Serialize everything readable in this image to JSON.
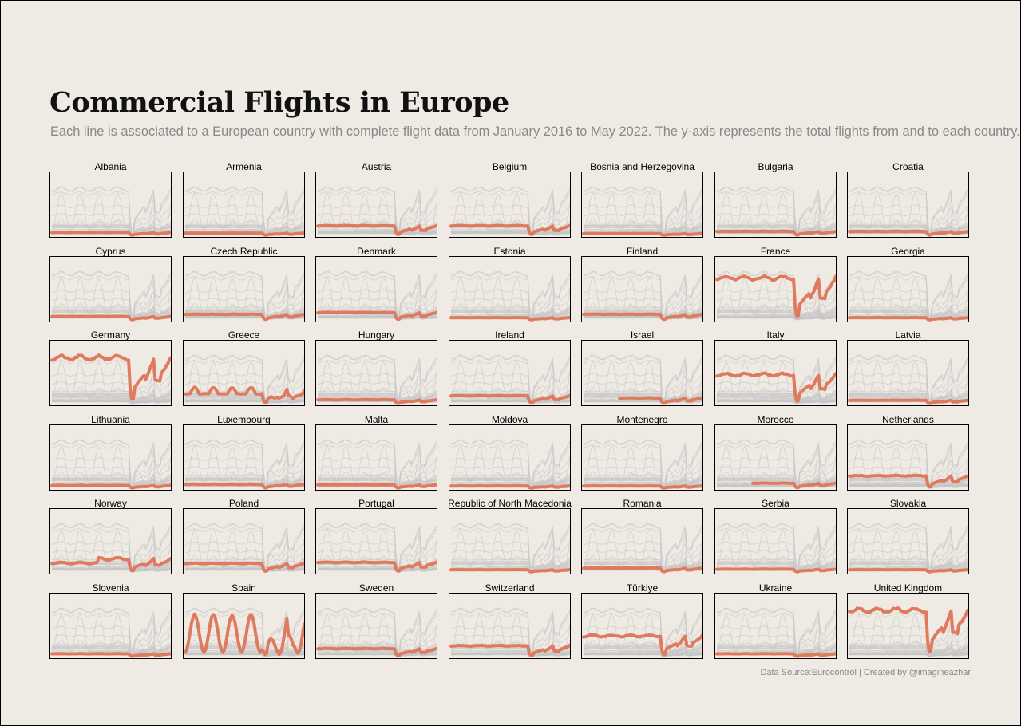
{
  "header": {
    "title": "Commercial Flights in Europe",
    "subtitle": "Each line is associated to a European country with complete flight data from January 2016 to May 2022. The y-axis represents the total flights from and to each country."
  },
  "footer": {
    "source": "Data Source:Eurocontrol | Created by @imagineazhar"
  },
  "colors": {
    "background": "#efebe4",
    "highlight": "#e07a5f",
    "context": "#c6c6c6",
    "frame": "#000000"
  },
  "chart_data": {
    "type": "line",
    "x_range": [
      "2016-01",
      "2022-05"
    ],
    "grid": false,
    "panels": [
      {
        "country": "Albania",
        "level": 0.05,
        "shape": "flat",
        "start": 0
      },
      {
        "country": "Armenia",
        "level": 0.04,
        "shape": "flat",
        "start": 0
      },
      {
        "country": "Austria",
        "level": 0.17,
        "shape": "medium",
        "start": 0
      },
      {
        "country": "Belgium",
        "level": 0.17,
        "shape": "medium",
        "start": 0
      },
      {
        "country": "Bosnia and Herzegovina",
        "level": 0.03,
        "shape": "flat",
        "start": 0
      },
      {
        "country": "Bulgaria",
        "level": 0.07,
        "shape": "flat",
        "start": 0
      },
      {
        "country": "Croatia",
        "level": 0.07,
        "shape": "flat",
        "start": 0
      },
      {
        "country": "Cyprus",
        "level": 0.06,
        "shape": "flat",
        "start": 0
      },
      {
        "country": "Czech Republic",
        "level": 0.1,
        "shape": "medium",
        "start": 0
      },
      {
        "country": "Denmark",
        "level": 0.13,
        "shape": "medium",
        "start": 0
      },
      {
        "country": "Estonia",
        "level": 0.04,
        "shape": "flat",
        "start": 0
      },
      {
        "country": "Finland",
        "level": 0.1,
        "shape": "medium",
        "start": 0
      },
      {
        "country": "France",
        "level": 0.75,
        "shape": "big",
        "start": 0
      },
      {
        "country": "Georgia",
        "level": 0.04,
        "shape": "flat",
        "start": 0
      },
      {
        "country": "Germany",
        "level": 0.82,
        "shape": "big",
        "start": 0
      },
      {
        "country": "Greece",
        "level": 0.28,
        "shape": "seasonal",
        "start": 0
      },
      {
        "country": "Hungary",
        "level": 0.07,
        "shape": "flat",
        "start": 0
      },
      {
        "country": "Ireland",
        "level": 0.14,
        "shape": "medium",
        "start": 0
      },
      {
        "country": "Israel",
        "level": 0.1,
        "shape": "medium",
        "start": 0.3
      },
      {
        "country": "Italy",
        "level": 0.52,
        "shape": "big",
        "start": 0
      },
      {
        "country": "Latvia",
        "level": 0.06,
        "shape": "flat",
        "start": 0
      },
      {
        "country": "Lithuania",
        "level": 0.05,
        "shape": "flat",
        "start": 0
      },
      {
        "country": "Luxembourg",
        "level": 0.07,
        "shape": "flat",
        "start": 0
      },
      {
        "country": "Malta",
        "level": 0.06,
        "shape": "flat",
        "start": 0
      },
      {
        "country": "Moldova",
        "level": 0.04,
        "shape": "flat",
        "start": 0
      },
      {
        "country": "Montenegro",
        "level": 0.04,
        "shape": "flat",
        "start": 0
      },
      {
        "country": "Morocco",
        "level": 0.09,
        "shape": "medium",
        "start": 0.3
      },
      {
        "country": "Netherlands",
        "level": 0.22,
        "shape": "medium",
        "start": 0
      },
      {
        "country": "Norway",
        "level": 0.26,
        "shape": "norway",
        "start": 0
      },
      {
        "country": "Poland",
        "level": 0.15,
        "shape": "medium",
        "start": 0
      },
      {
        "country": "Portugal",
        "level": 0.17,
        "shape": "medium",
        "start": 0
      },
      {
        "country": "Republic of North Macedonia",
        "level": 0.04,
        "shape": "flat",
        "start": 0
      },
      {
        "country": "Romania",
        "level": 0.07,
        "shape": "flat",
        "start": 0
      },
      {
        "country": "Serbia",
        "level": 0.05,
        "shape": "flat",
        "start": 0
      },
      {
        "country": "Slovakia",
        "level": 0.04,
        "shape": "flat",
        "start": 0
      },
      {
        "country": "Slovenia",
        "level": 0.05,
        "shape": "flat",
        "start": 0
      },
      {
        "country": "Spain",
        "level": 0.72,
        "shape": "big_seasonal",
        "start": 0
      },
      {
        "country": "Sweden",
        "level": 0.14,
        "shape": "medium",
        "start": 0
      },
      {
        "country": "Switzerland",
        "level": 0.19,
        "shape": "medium",
        "start": 0
      },
      {
        "country": "Türkiye",
        "level": 0.37,
        "shape": "big",
        "start": 0
      },
      {
        "country": "Ukraine",
        "level": 0.05,
        "shape": "flat",
        "start": 0
      },
      {
        "country": "United Kingdom",
        "level": 0.83,
        "shape": "big",
        "start": 0
      }
    ]
  }
}
